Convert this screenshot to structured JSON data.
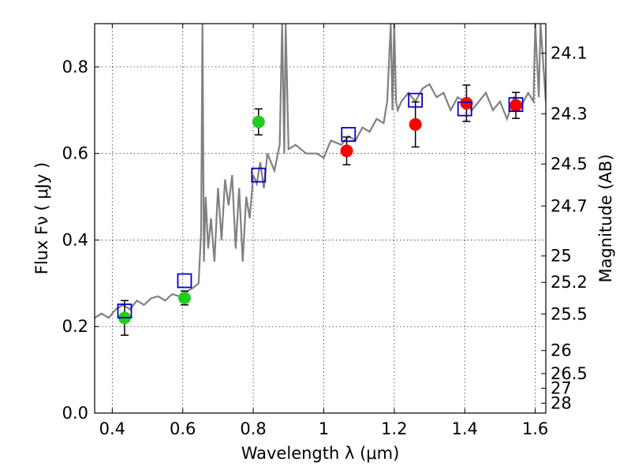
{
  "chart_data": {
    "type": "scatter",
    "xlabel": "Wavelength  λ (μm)",
    "ylabel": "Flux  Fν  ( μJy )",
    "y2label": "Magnitude (AB)",
    "xlim": [
      0.35,
      1.63
    ],
    "ylim": [
      0.0,
      0.9
    ],
    "grid": true,
    "x_ticks": [
      0.4,
      0.6,
      0.8,
      1.0,
      1.2,
      1.4,
      1.6
    ],
    "x_tick_labels": [
      "0.4",
      "0.6",
      "0.8",
      "1",
      "1.2",
      "1.4",
      "1.6"
    ],
    "y_ticks": [
      0.0,
      0.2,
      0.4,
      0.6,
      0.8
    ],
    "y_tick_labels": [
      "0.0",
      "0.2",
      "0.4",
      "0.6",
      "0.8"
    ],
    "y2_ticks": [
      "24.1",
      "24.3",
      "24.5",
      "24.7",
      "25",
      "25.2",
      "25.5",
      "26",
      "26.5",
      "27",
      "28"
    ],
    "spectrum": {
      "color": "#808080",
      "x": [
        0.35,
        0.37,
        0.39,
        0.41,
        0.43,
        0.45,
        0.47,
        0.49,
        0.51,
        0.53,
        0.55,
        0.57,
        0.59,
        0.61,
        0.63,
        0.645,
        0.652,
        0.656,
        0.66,
        0.665,
        0.672,
        0.68,
        0.69,
        0.7,
        0.71,
        0.72,
        0.73,
        0.74,
        0.75,
        0.76,
        0.77,
        0.78,
        0.79,
        0.8,
        0.81,
        0.82,
        0.83,
        0.84,
        0.86,
        0.875,
        0.882,
        0.888,
        0.892,
        0.9,
        0.92,
        0.95,
        0.98,
        1.0,
        1.02,
        1.05,
        1.07,
        1.09,
        1.11,
        1.13,
        1.15,
        1.17,
        1.18,
        1.19,
        1.195,
        1.2,
        1.205,
        1.21,
        1.22,
        1.24,
        1.26,
        1.28,
        1.3,
        1.32,
        1.34,
        1.36,
        1.38,
        1.4,
        1.42,
        1.44,
        1.46,
        1.48,
        1.5,
        1.52,
        1.54,
        1.56,
        1.58,
        1.595,
        1.6,
        1.61,
        1.615,
        1.63
      ],
      "y": [
        0.22,
        0.23,
        0.22,
        0.24,
        0.25,
        0.24,
        0.26,
        0.25,
        0.265,
        0.27,
        0.26,
        0.275,
        0.27,
        0.28,
        0.29,
        0.3,
        0.42,
        0.9,
        0.35,
        0.5,
        0.38,
        0.45,
        0.35,
        0.52,
        0.4,
        0.54,
        0.48,
        0.55,
        0.38,
        0.52,
        0.35,
        0.5,
        0.45,
        0.55,
        0.53,
        0.58,
        0.52,
        0.6,
        0.56,
        0.62,
        0.9,
        0.6,
        0.9,
        0.61,
        0.62,
        0.6,
        0.6,
        0.59,
        0.63,
        0.62,
        0.64,
        0.63,
        0.66,
        0.65,
        0.68,
        0.67,
        0.72,
        0.9,
        0.7,
        0.9,
        0.72,
        0.7,
        0.72,
        0.74,
        0.72,
        0.75,
        0.76,
        0.73,
        0.74,
        0.7,
        0.73,
        0.72,
        0.7,
        0.72,
        0.74,
        0.7,
        0.72,
        0.68,
        0.73,
        0.71,
        0.74,
        0.72,
        0.9,
        0.73,
        0.9,
        0.72
      ]
    },
    "series": [
      {
        "marker": "circle",
        "color": "#22cc22",
        "x": [
          0.435,
          0.605,
          0.815
        ],
        "y": [
          0.22,
          0.266,
          0.673
        ],
        "yerr": [
          0.04,
          0.016,
          0.03
        ]
      },
      {
        "marker": "circle",
        "color": "#ff0000",
        "x": [
          1.065,
          1.26,
          1.405,
          1.545
        ],
        "y": [
          0.606,
          0.667,
          0.716,
          0.711
        ],
        "yerr": [
          0.032,
          0.052,
          0.042,
          0.03
        ]
      },
      {
        "marker": "open-square",
        "color": "#0000cc",
        "x": [
          0.435,
          0.605,
          0.815,
          1.07,
          1.26,
          1.4,
          1.545
        ],
        "y": [
          0.236,
          0.306,
          0.55,
          0.644,
          0.723,
          0.703,
          0.713
        ]
      }
    ]
  }
}
